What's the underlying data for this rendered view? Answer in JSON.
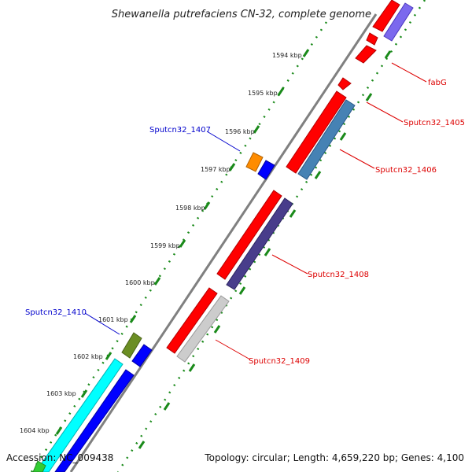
{
  "map": {
    "title": "Shewanella putrefaciens CN-32, complete genome",
    "accession_text": "Accession: NC_009438",
    "topology_text": "Topology: circular; Length: 4,659,220 bp; Genes: 4,100"
  },
  "ticks": [
    {
      "label": "1594 kbp"
    },
    {
      "label": "1595 kbp"
    },
    {
      "label": "1596 kbp"
    },
    {
      "label": "1597 kbp"
    },
    {
      "label": "1598 kbp"
    },
    {
      "label": "1599 kbp"
    },
    {
      "label": "1600 kbp"
    },
    {
      "label": "1601 kbp"
    },
    {
      "label": "1602 kbp"
    },
    {
      "label": "1603 kbp"
    },
    {
      "label": "1604 kbp"
    }
  ],
  "gene_labels": [
    {
      "text": "fabG",
      "color": "#dd0000"
    },
    {
      "text": "Sputcn32_1405",
      "color": "#dd0000"
    },
    {
      "text": "Sputcn32_1406",
      "color": "#dd0000"
    },
    {
      "text": "Sputcn32_1408",
      "color": "#dd0000"
    },
    {
      "text": "Sputcn32_1409",
      "color": "#dd0000"
    },
    {
      "text": "Sputcn32_1407",
      "color": "#0000cc"
    },
    {
      "text": "Sputcn32_1410",
      "color": "#0000cc"
    }
  ],
  "colors": {
    "backbone": "#808080",
    "tick_dots": "#1a8a1a",
    "forward_gene": "#ff0000",
    "reverse_gene_steelblue": "#4682b4",
    "reverse_gene_darkslate": "#483d8b",
    "reverse_gene_lavender": "#7b68ee",
    "reverse_gene_lightgray": "#cccccc",
    "other_gene_blue": "#0000ff",
    "other_gene_orange": "#ff8c00",
    "other_gene_olive": "#6b8e23",
    "other_gene_cyan": "#00ffff",
    "other_gene_green": "#32cd32"
  }
}
